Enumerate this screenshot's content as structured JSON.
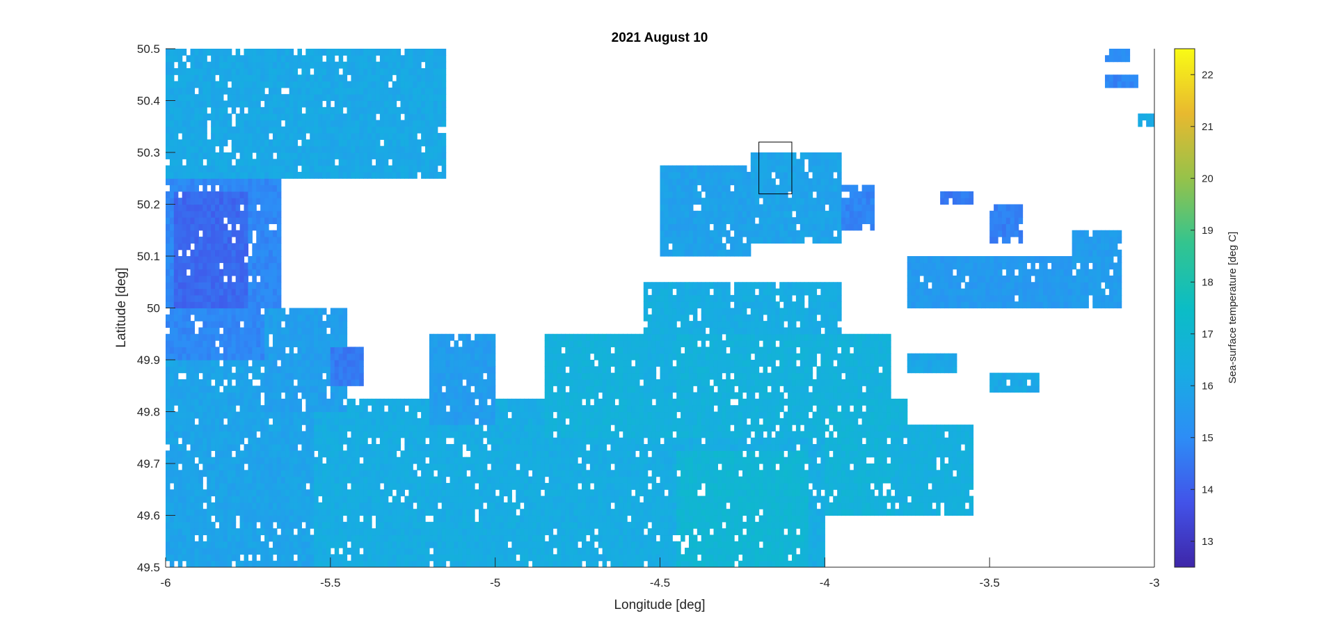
{
  "chart_data": {
    "type": "heatmap",
    "title": "2021 August 10",
    "xlabel": "Longitude [deg]",
    "ylabel": "Latitude [deg]",
    "xlim": [
      -6,
      -3
    ],
    "ylim": [
      49.5,
      50.5
    ],
    "xticks": [
      -6,
      -5.5,
      -5,
      -4.5,
      -4,
      -3.5,
      -3
    ],
    "xtick_labels": [
      "-6",
      "-5.5",
      "-5",
      "-4.5",
      "-4",
      "-3.5",
      "-3"
    ],
    "yticks": [
      49.5,
      49.6,
      49.7,
      49.8,
      49.9,
      50,
      50.1,
      50.2,
      50.3,
      50.4,
      50.5
    ],
    "ytick_labels": [
      "49.5",
      "49.6",
      "49.7",
      "49.8",
      "49.9",
      "50",
      "50.1",
      "50.2",
      "50.3",
      "50.4",
      "50.5"
    ],
    "colorbar": {
      "label": "Sea-surface temperature [deg C]",
      "range": [
        12.5,
        22.5
      ],
      "ticks": [
        13,
        14,
        15,
        16,
        17,
        18,
        19,
        20,
        21,
        22
      ],
      "tick_labels": [
        "13",
        "14",
        "15",
        "16",
        "17",
        "18",
        "19",
        "20",
        "21",
        "22"
      ],
      "colormap": "parula"
    },
    "annotation_box": {
      "lon": [
        -4.2,
        -4.1
      ],
      "lat": [
        50.22,
        50.32
      ]
    },
    "grid": false,
    "valid_regions": [
      {
        "lon": [
          -6.0,
          -5.15
        ],
        "lat": [
          50.25,
          50.5
        ],
        "t": 16.1
      },
      {
        "lon": [
          -6.0,
          -5.65
        ],
        "lat": [
          49.9,
          50.25
        ],
        "t": 14.9
      },
      {
        "lon": [
          -5.97,
          -5.75
        ],
        "lat": [
          50.0,
          50.22
        ],
        "t": 14.2
      },
      {
        "lon": [
          -5.55,
          -4.0
        ],
        "lat": [
          49.5,
          49.82
        ],
        "t": 16.3
      },
      {
        "lon": [
          -6.0,
          -5.55
        ],
        "lat": [
          49.5,
          49.9
        ],
        "t": 15.9
      },
      {
        "lon": [
          -5.7,
          -5.45
        ],
        "lat": [
          49.8,
          50.0
        ],
        "t": 15.7
      },
      {
        "lon": [
          -5.5,
          -5.4
        ],
        "lat": [
          49.85,
          49.92
        ],
        "t": 14.6
      },
      {
        "lon": [
          -5.2,
          -5.0
        ],
        "lat": [
          49.78,
          49.95
        ],
        "t": 15.6
      },
      {
        "lon": [
          -4.85,
          -3.8
        ],
        "lat": [
          49.75,
          49.95
        ],
        "t": 16.6
      },
      {
        "lon": [
          -4.55,
          -4.45
        ],
        "lat": [
          49.82,
          50.05
        ],
        "t": 16.4
      },
      {
        "lon": [
          -4.45,
          -4.05
        ],
        "lat": [
          49.5,
          49.72
        ],
        "t": 16.9
      },
      {
        "lon": [
          -4.0,
          -3.75
        ],
        "lat": [
          49.6,
          49.82
        ],
        "t": 16.7
      },
      {
        "lon": [
          -3.75,
          -3.65
        ],
        "lat": [
          49.72,
          49.78
        ],
        "t": 16.2
      },
      {
        "lon": [
          -4.45,
          -3.95
        ],
        "lat": [
          49.95,
          50.05
        ],
        "t": 16.3
      },
      {
        "lon": [
          -4.5,
          -4.22
        ],
        "lat": [
          50.1,
          50.28
        ],
        "t": 15.8
      },
      {
        "lon": [
          -4.22,
          -3.95
        ],
        "lat": [
          50.12,
          50.3
        ],
        "t": 15.9
      },
      {
        "lon": [
          -3.95,
          -3.85
        ],
        "lat": [
          50.15,
          50.24
        ],
        "t": 14.8
      },
      {
        "lon": [
          -3.8,
          -3.55
        ],
        "lat": [
          49.6,
          49.78
        ],
        "t": 16.5
      },
      {
        "lon": [
          -3.75,
          -3.6
        ],
        "lat": [
          49.87,
          49.91
        ],
        "t": 16.0
      },
      {
        "lon": [
          -3.5,
          -3.35
        ],
        "lat": [
          49.84,
          49.87
        ],
        "t": 16.1
      },
      {
        "lon": [
          -3.65,
          -3.55
        ],
        "lat": [
          50.2,
          50.23
        ],
        "t": 14.6
      },
      {
        "lon": [
          -3.5,
          -3.4
        ],
        "lat": [
          50.12,
          50.2
        ],
        "t": 14.7
      },
      {
        "lon": [
          -3.75,
          -3.15
        ],
        "lat": [
          50.0,
          50.1
        ],
        "t": 15.5
      },
      {
        "lon": [
          -3.25,
          -3.1
        ],
        "lat": [
          50.0,
          50.15
        ],
        "t": 15.6
      },
      {
        "lon": [
          -3.05,
          -3.0
        ],
        "lat": [
          50.35,
          50.38
        ],
        "t": 16.2
      },
      {
        "lon": [
          -3.15,
          -3.05
        ],
        "lat": [
          50.43,
          50.45
        ],
        "t": 14.8
      },
      {
        "lon": [
          -3.15,
          -3.08
        ],
        "lat": [
          50.48,
          50.5
        ],
        "t": 15.1
      }
    ]
  }
}
